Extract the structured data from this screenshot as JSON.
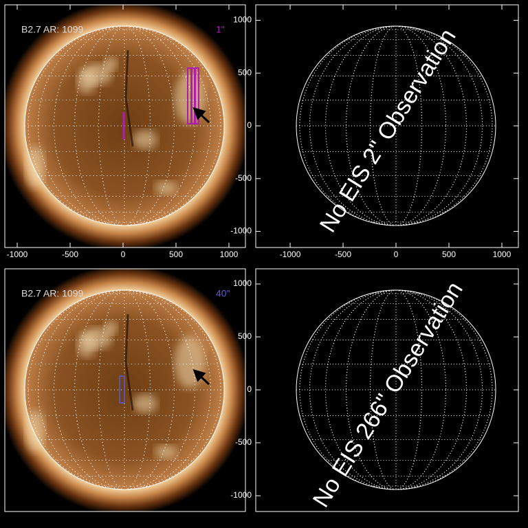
{
  "chart_data": [
    {
      "type": "solar-disk",
      "label": "B2.7 AR: 1099",
      "slit_label": "1\"",
      "slit_color": "#b01cb0",
      "xlim": [
        -1117,
        1156
      ],
      "xticks": [
        -1000,
        -500,
        0,
        500,
        1000
      ]
    },
    {
      "type": "empty-disk",
      "annotation": "No EIS 2\" Observation",
      "xlim": [
        -1325,
        1156
      ],
      "ylim": [
        -1153,
        1147
      ],
      "xticks": [
        -1000,
        -500,
        0,
        500,
        1000
      ],
      "yticks": [
        -1000,
        -500,
        0,
        500,
        1000
      ]
    },
    {
      "type": "solar-disk",
      "label": "B2.7 AR: 1099",
      "slit_label": "40\"",
      "slit_color": "#5a5ad8"
    },
    {
      "type": "empty-disk",
      "annotation": "No EIS 266\" Observation",
      "ylim": [
        -1149,
        1143
      ],
      "yticks": [
        -1000,
        -500,
        0,
        500,
        1000
      ]
    }
  ]
}
